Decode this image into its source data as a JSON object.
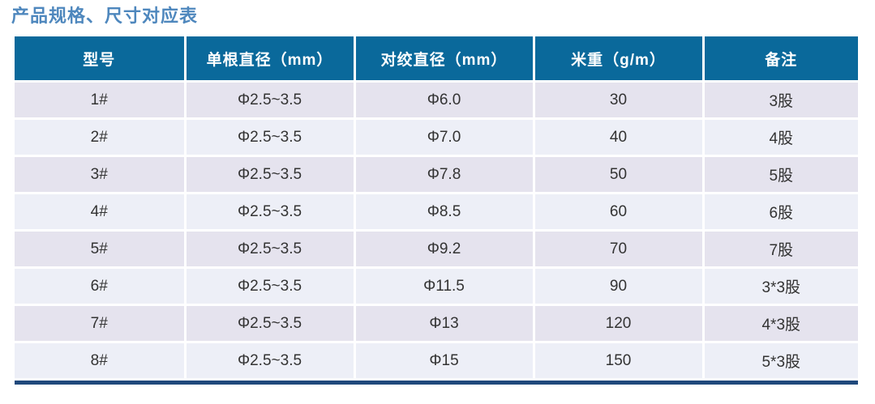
{
  "page_title": "产品规格、尺寸对应表",
  "table": {
    "headers": [
      "型号",
      "单根直径（mm）",
      "对绞直径（mm）",
      "米重（g/m）",
      "备注"
    ],
    "rows": [
      [
        "1#",
        "Φ2.5~3.5",
        "Φ6.0",
        "30",
        "3股"
      ],
      [
        "2#",
        "Φ2.5~3.5",
        "Φ7.0",
        "40",
        "4股"
      ],
      [
        "3#",
        "Φ2.5~3.5",
        "Φ7.8",
        "50",
        "5股"
      ],
      [
        "4#",
        "Φ2.5~3.5",
        "Φ8.5",
        "60",
        "6股"
      ],
      [
        "5#",
        "Φ2.5~3.5",
        "Φ9.2",
        "70",
        "7股"
      ],
      [
        "6#",
        "Φ2.5~3.5",
        "Φ11.5",
        "90",
        "3*3股"
      ],
      [
        "7#",
        "Φ2.5~3.5",
        "Φ13",
        "120",
        "4*3股"
      ],
      [
        "8#",
        "Φ2.5~3.5",
        "Φ15",
        "150",
        "5*3股"
      ]
    ]
  },
  "colors": {
    "title_text": "#4e87bd",
    "header_bg": "#0a699b",
    "header_text": "#ffffff",
    "row_odd_bg": "#e5e3ee",
    "row_even_bg": "#edeff7",
    "bottom_border": "#20497c",
    "cell_text": "#333333"
  }
}
